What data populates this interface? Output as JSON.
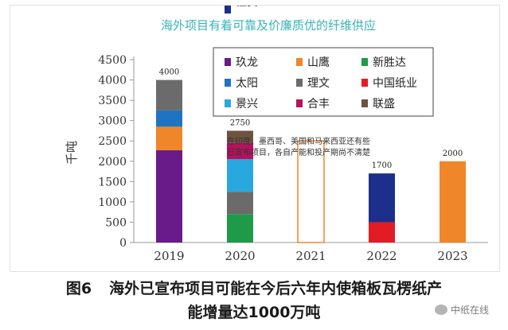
{
  "chart_data": {
    "type": "bar",
    "stacked": true,
    "title": "海外项目有着可靠及价廉质优的纤维供应",
    "ylabel": "千吨",
    "xlabel": "",
    "ylim": [
      0,
      4500
    ],
    "yticks": [
      0,
      500,
      1000,
      1500,
      2000,
      2500,
      3000,
      3500,
      4000,
      4500
    ],
    "categories": [
      "2019",
      "2020",
      "2021",
      "2022",
      "2023"
    ],
    "totals": [
      "4000",
      "2750",
      "",
      "1700",
      "2000"
    ],
    "series": [
      {
        "name": "玖龙",
        "color": "#6a1b8a",
        "values": [
          2270,
          0,
          0,
          0,
          0
        ]
      },
      {
        "name": "山鹰",
        "color": "#f0862a",
        "values": [
          580,
          0,
          0,
          0,
          2000
        ]
      },
      {
        "name": "新胜达",
        "color": "#1f9a4b",
        "values": [
          0,
          700,
          0,
          0,
          0
        ]
      },
      {
        "name": "太阳",
        "color": "#1f74c2",
        "values": [
          400,
          0,
          0,
          0,
          0
        ]
      },
      {
        "name": "理文",
        "color": "#6b6b6b",
        "values": [
          750,
          550,
          0,
          0,
          0
        ]
      },
      {
        "name": "中国纸业",
        "color": "#e31b23",
        "values": [
          0,
          0,
          0,
          500,
          0
        ]
      },
      {
        "name": "景兴",
        "color": "#29a8e0",
        "values": [
          0,
          800,
          0,
          0,
          0
        ]
      },
      {
        "name": "合丰",
        "color": "#b5125e",
        "values": [
          0,
          400,
          0,
          0,
          0
        ]
      },
      {
        "name": "联盛",
        "color": "#6e5240",
        "values": [
          0,
          300,
          0,
          0,
          0
        ]
      },
      {
        "name": "恒安",
        "color": "#1c2f8a",
        "values": [
          0,
          0,
          0,
          1200,
          0
        ]
      }
    ],
    "outlined_bars": [
      {
        "category": "2021",
        "value": 2500,
        "color": "#f0862a"
      }
    ],
    "annotation": [
      "在印度、墨西哥、美国和马来西亚还有些",
      "已宣布项目，各自产能和投产期尚不清楚"
    ],
    "legend_position": "top-right",
    "grid": false
  },
  "colors": {
    "title": "#39b3b7",
    "axis": "#9a9a9a",
    "tick_text": "#333333"
  },
  "caption": {
    "label": "图6",
    "line1": "海外已宣布项目可能在今后六年内使箱板瓦楞纸产",
    "line2": "能增量达1000万吨"
  },
  "watermark": {
    "icon": "wechat-icon",
    "text": "中纸在线"
  }
}
